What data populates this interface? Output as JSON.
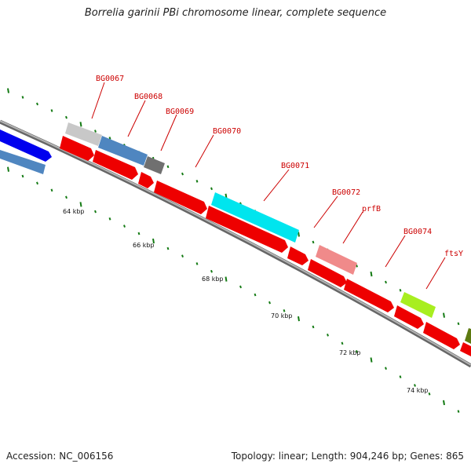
{
  "title": "Borrelia garinii PBi chromosome linear, complete sequence",
  "accession": "Accession: NC_006156",
  "summary": "Topology: linear; Length: 904,246 bp; Genes: 865",
  "colors": {
    "backbone": "#8c8c8c",
    "cds": "#ee0000",
    "label": "#cc0000",
    "ticks": "#137a13",
    "steelblue": "#4f86c0",
    "blue": "#0000ee",
    "silver": "#c8c8c8",
    "dimgray": "#707070",
    "cyan": "#00e5ee",
    "salmon": "#f08a8a",
    "greenyellow": "#a8ee20",
    "olive": "#5d7a10"
  },
  "ruler": {
    "labels": [
      "64 kbp",
      "66 kbp",
      "68 kbp",
      "70 kbp",
      "72 kbp",
      "74 kbp"
    ]
  },
  "gene_labels": [
    "BG0067",
    "BG0068",
    "BG0069",
    "BG0070",
    "BG0071",
    "BG0072",
    "prfB",
    "BG0074",
    "ftsY"
  ]
}
